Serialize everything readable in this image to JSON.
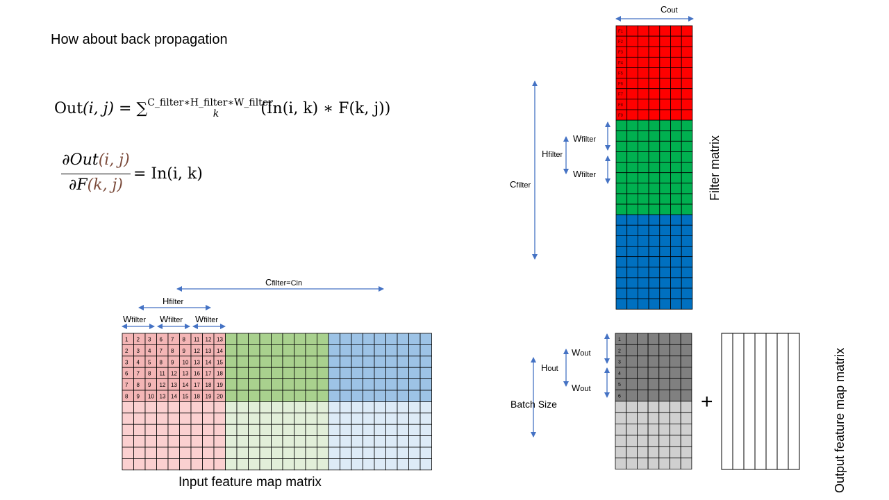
{
  "title": "How about back propagation",
  "formula1": {
    "lhs": "Out",
    "args": "(i, j)",
    "eq": " = ∑",
    "sup": "C_filter∗H_filter∗W_filter",
    "sub": "k",
    "rhs": "(In(i, k) ∗ F(k, j))"
  },
  "formula2": {
    "num_a": "∂Out",
    "num_b": "(i, j)",
    "den_a": "∂F",
    "den_b": "(k, j)",
    "rhs": "= In(i, k)"
  },
  "input_map": {
    "caption": "Input feature map matrix",
    "c_label_main": "C",
    "c_label_sub": "filter=Cin",
    "h_label_main": "H",
    "h_label_sub": "filter",
    "w_label_main": "W",
    "w_label_sub": "filter",
    "cell_numbers": [
      [
        1,
        2,
        3,
        6,
        7,
        8,
        11,
        12,
        13
      ],
      [
        2,
        3,
        4,
        7,
        8,
        9,
        12,
        13,
        14
      ],
      [
        3,
        4,
        5,
        8,
        9,
        10,
        13,
        14,
        15
      ],
      [
        6,
        7,
        8,
        11,
        12,
        13,
        16,
        17,
        18
      ],
      [
        7,
        8,
        9,
        12,
        13,
        14,
        17,
        18,
        19
      ],
      [
        8,
        9,
        10,
        13,
        14,
        15,
        18,
        19,
        20
      ]
    ],
    "colors": {
      "red_dark": "#f4b6b6",
      "red_light": "#fbd0d0",
      "green_dark": "#a9d18e",
      "green_light": "#e2efd9",
      "blue_dark": "#9dc3e6",
      "blue_light": "#ddebf7"
    }
  },
  "filter_matrix": {
    "caption": "Filter matrix",
    "cout_main": "C",
    "cout_sub": "out",
    "cfilter_main": "C",
    "cfilter_sub": "filter",
    "hfilter_main": "H",
    "hfilter_sub": "filter",
    "wfilter_main": "W",
    "wfilter_sub": "filter",
    "row_labels": [
      "F1",
      "F2",
      "F3",
      "F4",
      "F5",
      "F6",
      "F7",
      "F8",
      "F9"
    ],
    "colors": {
      "red": "#ff0000",
      "green": "#00b050",
      "blue": "#0070c0"
    }
  },
  "output_matrix": {
    "caption": "Output feature map matrix",
    "batch": "Batch Size",
    "hout_main": "H",
    "hout_sub": "out",
    "wout_main": "W",
    "wout_sub": "out",
    "row_labels": [
      "1",
      "2",
      "3",
      "4",
      "5",
      "6"
    ],
    "plus": "+",
    "colors": {
      "dark": "#808080",
      "light": "#d0d0d0"
    }
  },
  "arrow_color": "#4472c4"
}
